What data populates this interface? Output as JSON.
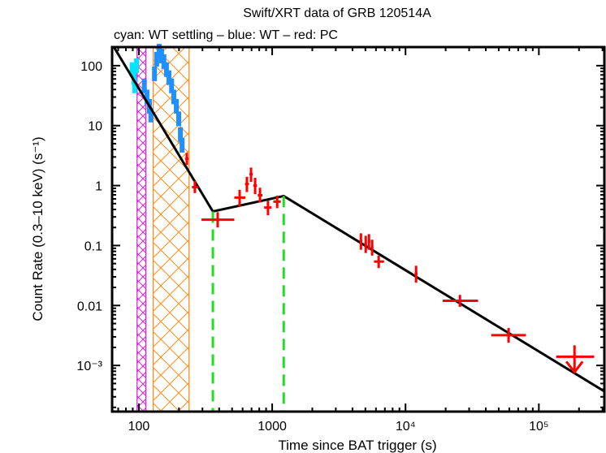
{
  "chart_data": {
    "type": "scatter",
    "title": "Swift/XRT data of GRB 120514A",
    "subtitle": "cyan: WT settling – blue: WT – red: PC",
    "xlabel": "Time since BAT trigger (s)",
    "ylabel": "Count Rate (0.3–10 keV) (s⁻¹)",
    "xscale": "log",
    "yscale": "log",
    "xlim": [
      63,
      310000
    ],
    "ylim": [
      0.00017,
      204
    ],
    "x_ticks": [
      {
        "value": 100,
        "label": "100"
      },
      {
        "value": 1000,
        "label": "1000"
      },
      {
        "value": 10000,
        "label": "10⁴"
      },
      {
        "value": 100000,
        "label": "10⁵"
      }
    ],
    "y_ticks": [
      {
        "value": 100,
        "label": "100"
      },
      {
        "value": 10,
        "label": "10"
      },
      {
        "value": 1,
        "label": "1"
      },
      {
        "value": 0.1,
        "label": "0.1"
      },
      {
        "value": 0.01,
        "label": "0.01"
      },
      {
        "value": 0.001,
        "label": "10⁻³"
      }
    ],
    "grid": false,
    "series": [
      {
        "name": "WT settling",
        "color": "#00e5ff",
        "style": "band",
        "points": [
          {
            "t": 89,
            "r": 86
          },
          {
            "t": 92,
            "r": 63
          },
          {
            "t": 93,
            "r": 46
          },
          {
            "t": 96,
            "r": 100
          }
        ]
      },
      {
        "name": "WT",
        "color": "#1e90ff",
        "style": "band",
        "points": [
          {
            "t": 110,
            "r": 46
          },
          {
            "t": 115,
            "r": 30
          },
          {
            "t": 120,
            "r": 21
          },
          {
            "t": 123,
            "r": 15
          },
          {
            "t": 131,
            "r": 73
          },
          {
            "t": 136,
            "r": 128
          },
          {
            "t": 142,
            "r": 175
          },
          {
            "t": 148,
            "r": 145
          },
          {
            "t": 154,
            "r": 117
          },
          {
            "t": 161,
            "r": 86
          },
          {
            "t": 168,
            "r": 63
          },
          {
            "t": 176,
            "r": 46
          },
          {
            "t": 183,
            "r": 30
          },
          {
            "t": 191,
            "r": 21
          },
          {
            "t": 199,
            "r": 13
          },
          {
            "t": 205,
            "r": 7.1
          },
          {
            "t": 211,
            "r": 4.7
          }
        ]
      },
      {
        "name": "PC",
        "color": "#ff0000",
        "style": "errorbar",
        "points": [
          {
            "t": 229,
            "tlo": 222,
            "thi": 236,
            "r": 2.8,
            "rlo": 2.2,
            "rhi": 3.5
          },
          {
            "t": 263,
            "tlo": 250,
            "thi": 280,
            "r": 0.94,
            "rlo": 0.75,
            "rhi": 1.2
          },
          {
            "t": 390,
            "tlo": 295,
            "thi": 520,
            "r": 0.27,
            "rlo": 0.2,
            "rhi": 0.36
          },
          {
            "t": 570,
            "tlo": 520,
            "thi": 630,
            "r": 0.63,
            "rlo": 0.45,
            "rhi": 0.85
          },
          {
            "t": 646,
            "tlo": 625,
            "thi": 670,
            "r": 1.06,
            "rlo": 0.78,
            "rhi": 1.4
          },
          {
            "t": 694,
            "tlo": 675,
            "thi": 715,
            "r": 1.55,
            "rlo": 1.15,
            "rhi": 2.0
          },
          {
            "t": 745,
            "tlo": 722,
            "thi": 770,
            "r": 1.0,
            "rlo": 0.72,
            "rhi": 1.35
          },
          {
            "t": 810,
            "tlo": 780,
            "thi": 845,
            "r": 0.69,
            "rlo": 0.52,
            "rhi": 0.92
          },
          {
            "t": 930,
            "tlo": 870,
            "thi": 990,
            "r": 0.43,
            "rlo": 0.32,
            "rhi": 0.56
          },
          {
            "t": 1090,
            "tlo": 1020,
            "thi": 1160,
            "r": 0.54,
            "rlo": 0.42,
            "rhi": 0.68
          },
          {
            "t": 4630,
            "tlo": 4530,
            "thi": 4740,
            "r": 0.12,
            "rlo": 0.085,
            "rhi": 0.16
          },
          {
            "t": 5030,
            "tlo": 4920,
            "thi": 5140,
            "r": 0.107,
            "rlo": 0.075,
            "rhi": 0.145
          },
          {
            "t": 5320,
            "tlo": 5200,
            "thi": 5440,
            "r": 0.117,
            "rlo": 0.085,
            "rhi": 0.155
          },
          {
            "t": 5620,
            "tlo": 5500,
            "thi": 5750,
            "r": 0.094,
            "rlo": 0.068,
            "rhi": 0.125
          },
          {
            "t": 6290,
            "tlo": 5800,
            "thi": 6900,
            "r": 0.054,
            "rlo": 0.042,
            "rhi": 0.068
          },
          {
            "t": 12000,
            "tlo": 11700,
            "thi": 12300,
            "r": 0.034,
            "rlo": 0.024,
            "rhi": 0.046
          },
          {
            "t": 25600,
            "tlo": 19000,
            "thi": 35000,
            "r": 0.012,
            "rlo": 0.0095,
            "rhi": 0.015
          },
          {
            "t": 59300,
            "tlo": 44000,
            "thi": 80000,
            "r": 0.0032,
            "rlo": 0.0024,
            "rhi": 0.0042
          },
          {
            "t": 185000,
            "tlo": 135000,
            "thi": 260000,
            "r": 0.0014,
            "upper_limit": true
          }
        ]
      }
    ],
    "model": {
      "name": "broken power-law fit",
      "color": "#000000",
      "vertices": [
        {
          "t": 65,
          "r": 204
        },
        {
          "t": 359,
          "r": 0.37
        },
        {
          "t": 1220,
          "r": 0.67
        },
        {
          "t": 310000,
          "r": 0.00037
        }
      ]
    },
    "breaks": {
      "color": "#22dd22",
      "times": [
        {
          "t": 359,
          "r": 0.37
        },
        {
          "t": 1220,
          "r": 0.67
        }
      ]
    },
    "shaded_intervals": [
      {
        "name": "magenta-interval",
        "color": "#dd22dd",
        "t_start": 97,
        "t_end": 113
      },
      {
        "name": "orange-interval",
        "color": "#ff8c1a",
        "t_start": 128,
        "t_end": 238
      }
    ]
  }
}
